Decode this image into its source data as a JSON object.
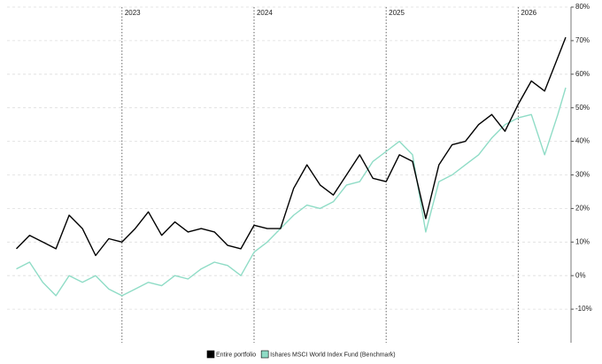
{
  "chart_data": {
    "type": "line",
    "x": [
      2022.2,
      2022.3,
      2022.4,
      2022.5,
      2022.6,
      2022.7,
      2022.8,
      2022.9,
      2023.0,
      2023.1,
      2023.2,
      2023.3,
      2023.4,
      2023.5,
      2023.6,
      2023.7,
      2023.8,
      2023.9,
      2024.0,
      2024.1,
      2024.2,
      2024.3,
      2024.4,
      2024.5,
      2024.6,
      2024.7,
      2024.8,
      2024.9,
      2025.0,
      2025.1,
      2025.2,
      2025.3,
      2025.4,
      2025.5,
      2025.6,
      2025.7,
      2025.8,
      2025.9,
      2026.0,
      2026.1,
      2026.2,
      2026.3,
      2026.36
    ],
    "series": [
      {
        "name": "Entire portfolio",
        "color": "#000000",
        "values": [
          8,
          12,
          10,
          8,
          18,
          14,
          6,
          11,
          10,
          14,
          19,
          12,
          16,
          13,
          14,
          13,
          9,
          8,
          15,
          14,
          14,
          26,
          33,
          27,
          24,
          30,
          36,
          29,
          28,
          36,
          34,
          17,
          33,
          39,
          40,
          45,
          48,
          43,
          51,
          58,
          55,
          65,
          71
        ]
      },
      {
        "name": "Ishares MSCI World Index Fund (Benchmark)",
        "color": "#8fdcc6",
        "values": [
          2,
          4,
          -2,
          -6,
          0,
          -2,
          0,
          -4,
          -6,
          -4,
          -2,
          -3,
          0,
          -1,
          2,
          4,
          3,
          0,
          7,
          10,
          14,
          18,
          21,
          20,
          22,
          27,
          28,
          34,
          37,
          40,
          36,
          13,
          28,
          30,
          33,
          36,
          41,
          45,
          47,
          48,
          36,
          48,
          56
        ]
      }
    ],
    "xlim": [
      2022.17,
      2026.4
    ],
    "xticks": [
      2023,
      2024,
      2025,
      2026
    ],
    "ylim": [
      -20,
      80
    ],
    "yticks": [
      {
        "value": -10,
        "label": "-10%"
      },
      {
        "value": 0,
        "label": "0%"
      },
      {
        "value": 10,
        "label": "10%"
      },
      {
        "value": 20,
        "label": "20%"
      },
      {
        "value": 30,
        "label": "30%"
      },
      {
        "value": 40,
        "label": "40%"
      },
      {
        "value": 50,
        "label": "50%"
      },
      {
        "value": 60,
        "label": "60%"
      },
      {
        "value": 70,
        "label": "70%"
      },
      {
        "value": 80,
        "label": "80%"
      }
    ],
    "grid": true
  }
}
